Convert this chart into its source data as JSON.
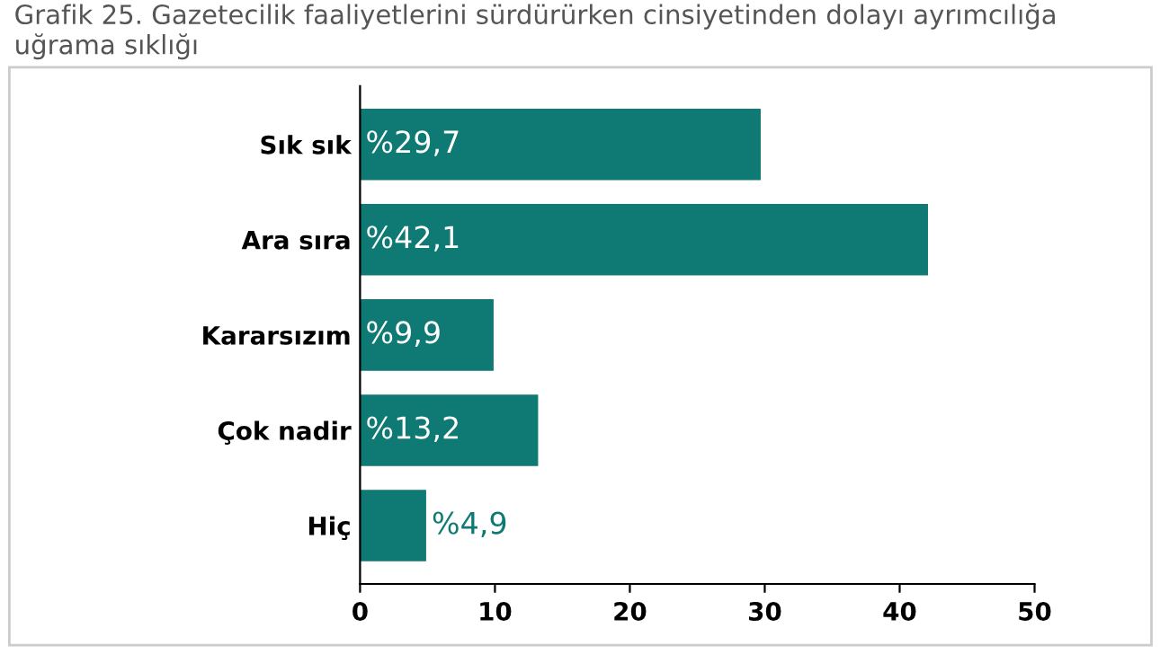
{
  "chart_data": {
    "type": "bar",
    "orientation": "horizontal",
    "title": "Grafik 25. Gazetecilik faaliyetlerini sürdürürken cinsiyetinden dolayı ayrımcılığa\nuğrama sıklığı",
    "categories": [
      "Sık sık",
      "Ara sıra",
      "Kararsızım",
      "Çok nadir",
      "Hiç"
    ],
    "values": [
      29.7,
      42.1,
      9.9,
      13.2,
      4.9
    ],
    "value_labels": [
      "%29,7",
      "%42,1",
      "%9,9",
      "%13,2",
      "%4,9"
    ],
    "color": "#0e7a73",
    "xlim": [
      0,
      50
    ],
    "xticks": [
      0,
      10,
      20,
      30,
      40,
      50
    ],
    "grid": false,
    "legend": false
  }
}
